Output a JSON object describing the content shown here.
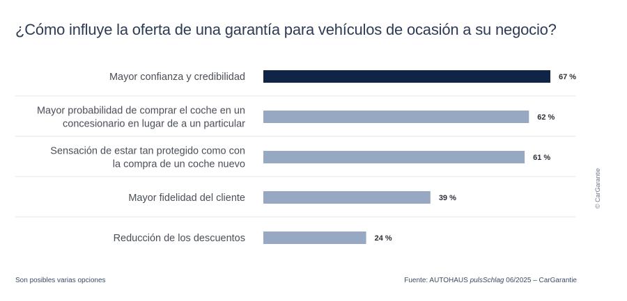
{
  "chart_data": {
    "type": "bar",
    "orientation": "horizontal",
    "title": "¿Cómo influye la oferta de una garantía para vehículos de ocasión a su negocio?",
    "categories": [
      [
        "Mayor confianza y credibilidad"
      ],
      [
        "Mayor probabilidad de comprar el coche en un",
        "concesionario en lugar de a un particular"
      ],
      [
        "Sensación de estar tan protegido como con",
        "la compra de un coche nuevo"
      ],
      [
        "Mayor fidelidad del cliente"
      ],
      [
        "Reducción de los descuentos"
      ]
    ],
    "values": [
      67,
      62,
      61,
      39,
      24
    ],
    "value_labels": [
      "67 %",
      "62 %",
      "61 %",
      "39 %",
      "24 %"
    ],
    "unit": "%",
    "xlim": [
      0,
      67
    ],
    "grid": false,
    "colors": {
      "highlight": "#0f2447",
      "bar": "#97a8c2",
      "separator": "#e3e6ea"
    }
  },
  "footer": {
    "note": "Son posibles varias opciones",
    "source_prefix": "Fuente: AUTOHAUS ",
    "source_italic": "pulsSchlag",
    "source_suffix": " 06/2025 – CarGarantie"
  },
  "copyright": "© CarGarantie"
}
